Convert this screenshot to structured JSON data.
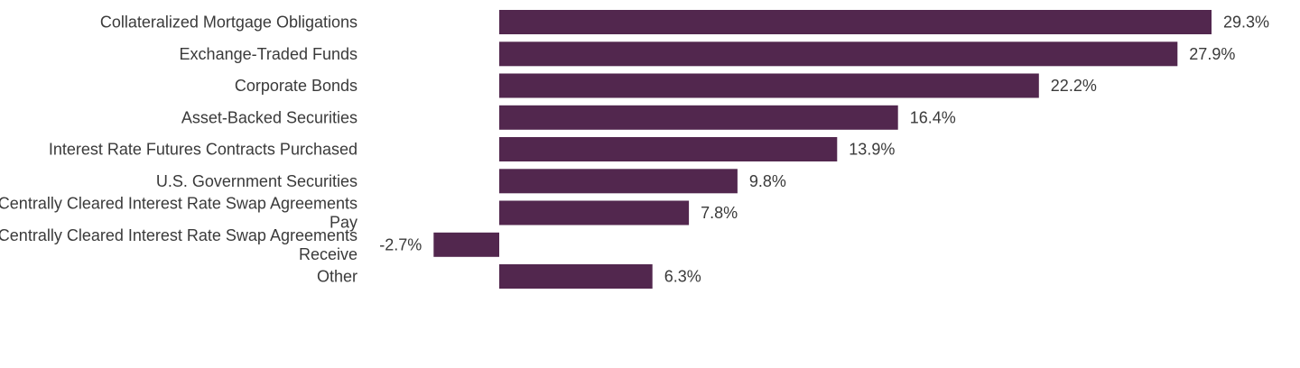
{
  "chart_data": {
    "type": "bar",
    "orientation": "horizontal",
    "categories": [
      [
        "Collateralized Mortgage Obligations"
      ],
      [
        "Exchange-Traded Funds"
      ],
      [
        "Corporate Bonds"
      ],
      [
        "Asset-Backed Securities"
      ],
      [
        "Interest Rate Futures Contracts Purchased"
      ],
      [
        "U.S. Government Securities"
      ],
      [
        "Centrally Cleared Interest Rate Swap Agreements",
        "Pay"
      ],
      [
        "Centrally Cleared Interest Rate Swap Agreements",
        "Receive"
      ],
      [
        "Other"
      ]
    ],
    "values": [
      29.3,
      27.9,
      22.2,
      16.4,
      13.9,
      9.8,
      7.8,
      -2.7,
      6.3
    ],
    "value_labels": [
      "29.3%",
      "27.9%",
      "22.2%",
      "16.4%",
      "13.9%",
      "9.8%",
      "7.8%",
      "-2.7%",
      "6.3%"
    ],
    "unit": "%",
    "bar_color": "#52274e",
    "text_color": "#3a3a3a",
    "grid": false,
    "legend": "none",
    "title": "",
    "xlabel": "",
    "ylabel": "",
    "xlim": [
      -2.7,
      29.3
    ]
  }
}
